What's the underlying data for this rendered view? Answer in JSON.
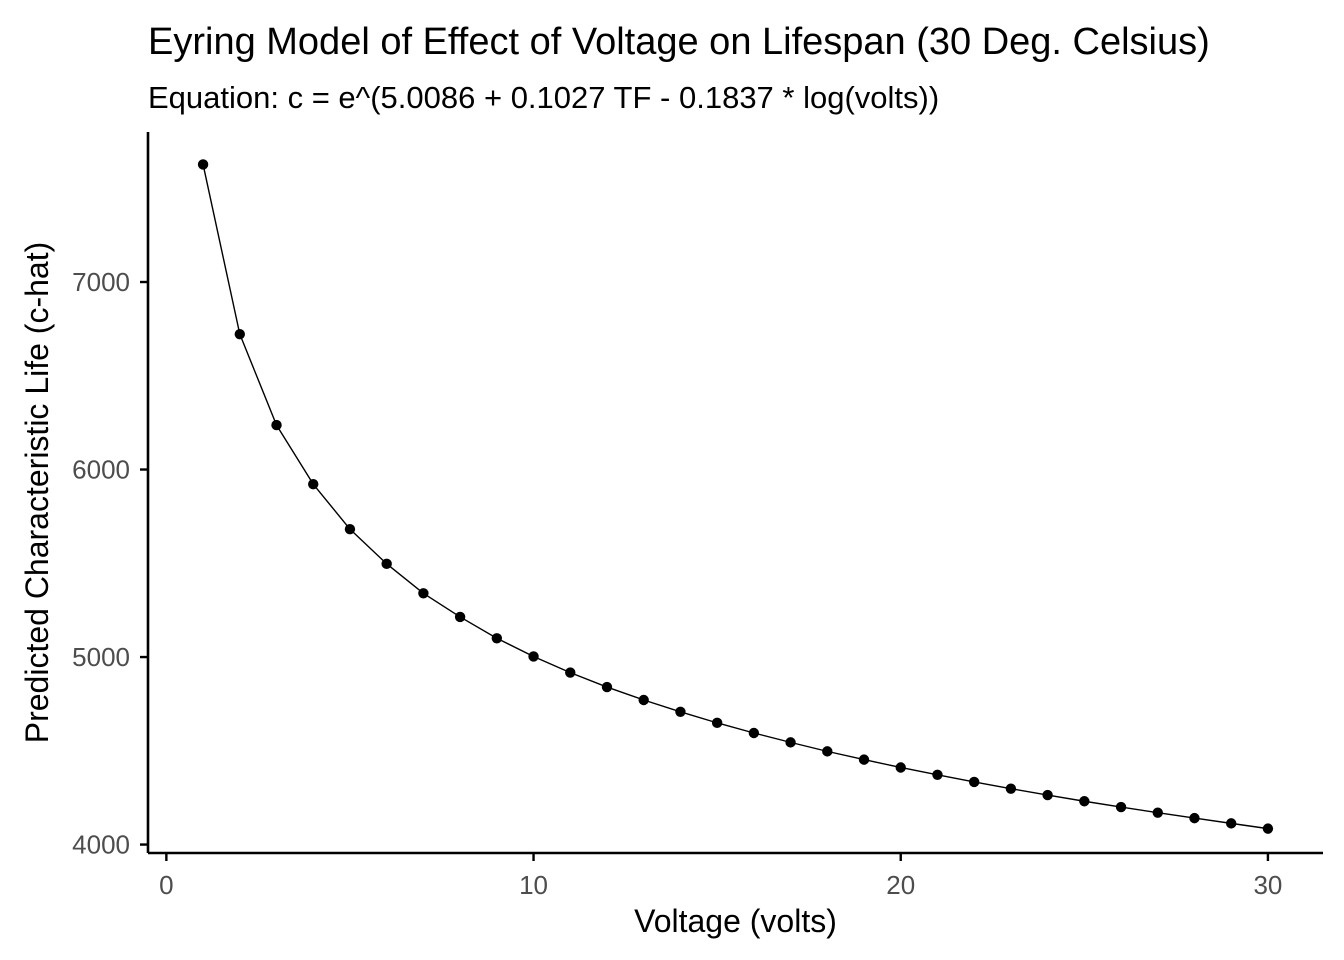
{
  "chart_data": {
    "type": "line",
    "title": "Eyring Model of Effect of Voltage on Lifespan (30 Deg. Celsius)",
    "subtitle": "Equation: c = e^(5.0086 + 0.1027 TF - 0.1837 * log(volts))",
    "xlabel": "Voltage (volts)",
    "ylabel": "Predicted Characteristic Life (c-hat)",
    "xlim": [
      -0.5,
      31.5
    ],
    "ylim": [
      3955,
      7800
    ],
    "x_ticks": [
      0,
      10,
      20,
      30
    ],
    "y_ticks": [
      4000,
      5000,
      6000,
      7000
    ],
    "x_tick_labels": [
      "0",
      "10",
      "20",
      "30"
    ],
    "y_tick_labels": [
      "4000",
      "5000",
      "6000",
      7000
    ],
    "grid": false,
    "markers": true,
    "colors": {
      "line": "#000000",
      "point": "#000000",
      "axis": "#000000",
      "tick_label": "#4d4d4d"
    },
    "series": [
      {
        "x": [
          1,
          2,
          3,
          4,
          5,
          6,
          7,
          8,
          9,
          10,
          11,
          12,
          13,
          14,
          15,
          16,
          17,
          18,
          19,
          20,
          21,
          22,
          23,
          24,
          25,
          26,
          27,
          28,
          29,
          30
        ],
        "values": [
          7627,
          6722,
          6237,
          5922,
          5682,
          5497,
          5340,
          5214,
          5100,
          5003,
          4917,
          4840,
          4771,
          4708,
          4649,
          4595,
          4545,
          4497,
          4453,
          4411,
          4372,
          4334,
          4298,
          4264,
          4231,
          4200,
          4170,
          4141,
          4113,
          4085
        ]
      }
    ]
  }
}
